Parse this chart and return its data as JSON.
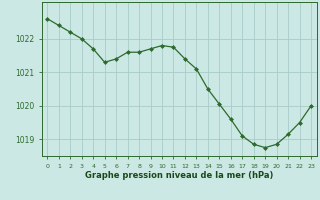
{
  "x": [
    0,
    1,
    2,
    3,
    4,
    5,
    6,
    7,
    8,
    9,
    10,
    11,
    12,
    13,
    14,
    15,
    16,
    17,
    18,
    19,
    20,
    21,
    22,
    23
  ],
  "y": [
    1022.6,
    1022.4,
    1022.2,
    1022.0,
    1021.7,
    1021.3,
    1021.4,
    1021.6,
    1021.6,
    1021.7,
    1021.8,
    1021.75,
    1021.4,
    1021.1,
    1020.5,
    1020.05,
    1019.6,
    1019.1,
    1018.85,
    1018.75,
    1018.85,
    1019.15,
    1019.5,
    1020.0
  ],
  "line_color": "#2d6a2d",
  "marker_color": "#2d6a2d",
  "bg_color": "#cce8e4",
  "grid_color": "#a8ccc8",
  "xlabel": "Graphe pression niveau de la mer (hPa)",
  "xlabel_color": "#1a4a1a",
  "tick_color": "#2d6a2d",
  "ylim": [
    1018.5,
    1023.1
  ],
  "yticks": [
    1019,
    1020,
    1021,
    1022
  ],
  "xticks": [
    0,
    1,
    2,
    3,
    4,
    5,
    6,
    7,
    8,
    9,
    10,
    11,
    12,
    13,
    14,
    15,
    16,
    17,
    18,
    19,
    20,
    21,
    22,
    23
  ],
  "xtick_labels": [
    "0",
    "1",
    "2",
    "3",
    "4",
    "5",
    "6",
    "7",
    "8",
    "9",
    "10",
    "11",
    "12",
    "13",
    "14",
    "15",
    "16",
    "17",
    "18",
    "19",
    "20",
    "21",
    "22",
    "23"
  ],
  "fig_width": 3.2,
  "fig_height": 2.0,
  "dpi": 100
}
